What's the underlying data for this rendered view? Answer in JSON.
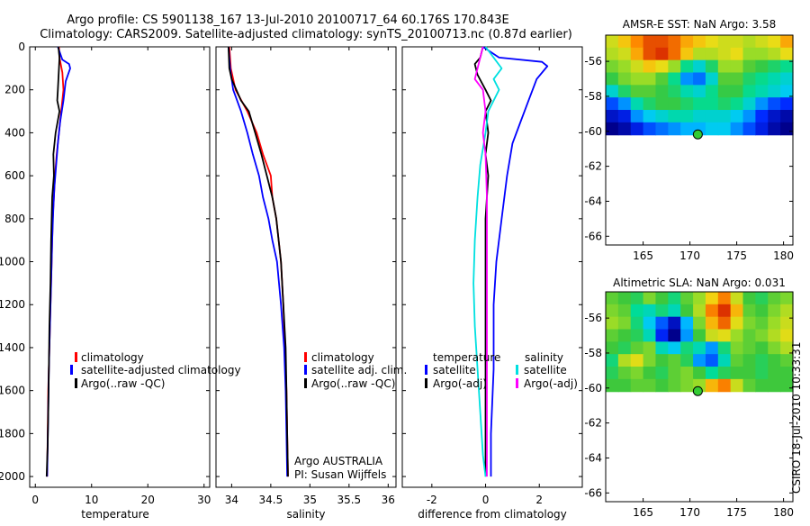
{
  "header": {
    "line1": "Argo profile: CS 5901138_167 13-Jul-2010 20100717_64 60.176S 170.843E",
    "line2": "Climatology: CARS2009. Satellite-adjusted climatology: synTS_20100713.nc (0.87d earlier)"
  },
  "side_stamp": "CSIRO 18-Jul-2010 10:33:31",
  "annotations": {
    "float_owner": "Argo AUSTRALIA",
    "pi": "PI: Susan Wijffels"
  },
  "colors": {
    "climatology": "#ff0000",
    "satellite": "#0000ff",
    "argo": "#000000",
    "sat_salinity": "#00e0e0",
    "argo_salinity_diff": "#ff00ff",
    "marker": "#33cc33"
  },
  "chart_data": [
    {
      "type": "line",
      "id": "temperature",
      "xlabel": "temperature",
      "xlim": [
        -1,
        31
      ],
      "ylim": [
        2050,
        0
      ],
      "y_reversed": true,
      "xticks": [
        0,
        10,
        20,
        30
      ],
      "yticks": [
        0,
        200,
        400,
        600,
        800,
        1000,
        1200,
        1400,
        1600,
        1800,
        2000
      ],
      "legend": [
        "climatology",
        "satellite-adjusted climatology",
        "Argo(..raw -QC)"
      ],
      "series": [
        {
          "name": "climatology",
          "color": "#ff0000",
          "points": [
            [
              4.2,
              0
            ],
            [
              4.3,
              50
            ],
            [
              4.8,
              120
            ],
            [
              5.0,
              200
            ],
            [
              4.6,
              300
            ],
            [
              4.2,
              400
            ],
            [
              3.8,
              500
            ],
            [
              3.5,
              600
            ],
            [
              3.3,
              700
            ],
            [
              3.1,
              800
            ],
            [
              2.9,
              1000
            ],
            [
              2.7,
              1200
            ],
            [
              2.5,
              1400
            ],
            [
              2.3,
              1600
            ],
            [
              2.2,
              1800
            ],
            [
              2.1,
              2000
            ]
          ]
        },
        {
          "name": "satellite-adjusted climatology",
          "color": "#0000ff",
          "points": [
            [
              4.0,
              0
            ],
            [
              4.8,
              60
            ],
            [
              6.0,
              80
            ],
            [
              6.2,
              100
            ],
            [
              5.4,
              160
            ],
            [
              5.0,
              250
            ],
            [
              4.4,
              350
            ],
            [
              4.0,
              450
            ],
            [
              3.7,
              550
            ],
            [
              3.4,
              650
            ],
            [
              3.2,
              750
            ],
            [
              3.0,
              900
            ],
            [
              2.8,
              1100
            ],
            [
              2.6,
              1300
            ],
            [
              2.4,
              1500
            ],
            [
              2.3,
              1700
            ],
            [
              2.2,
              1850
            ],
            [
              2.1,
              2000
            ]
          ]
        },
        {
          "name": "Argo(..raw -QC)",
          "color": "#000000",
          "points": [
            [
              4.1,
              0
            ],
            [
              4.3,
              50
            ],
            [
              4.2,
              100
            ],
            [
              4.0,
              200
            ],
            [
              3.9,
              250
            ],
            [
              4.3,
              300
            ],
            [
              3.6,
              400
            ],
            [
              3.2,
              500
            ],
            [
              3.3,
              600
            ],
            [
              3.0,
              700
            ],
            [
              2.8,
              900
            ],
            [
              2.7,
              1100
            ],
            [
              2.5,
              1300
            ],
            [
              2.4,
              1500
            ],
            [
              2.3,
              1700
            ],
            [
              2.2,
              1850
            ],
            [
              2.0,
              2000
            ]
          ]
        }
      ]
    },
    {
      "type": "line",
      "id": "salinity",
      "xlabel": "salinity",
      "xlim": [
        33.8,
        36.1
      ],
      "ylim": [
        2050,
        0
      ],
      "y_reversed": true,
      "xticks": [
        34,
        34.5,
        35,
        35.5,
        36
      ],
      "legend": [
        "climatology",
        "satellite adj. clim.",
        "Argo(..raw -QC)"
      ],
      "series": [
        {
          "name": "climatology",
          "color": "#ff0000",
          "points": [
            [
              33.97,
              0
            ],
            [
              33.99,
              100
            ],
            [
              34.05,
              200
            ],
            [
              34.2,
              300
            ],
            [
              34.32,
              400
            ],
            [
              34.4,
              500
            ],
            [
              34.5,
              600
            ],
            [
              34.52,
              700
            ],
            [
              34.57,
              800
            ],
            [
              34.6,
              900
            ],
            [
              34.63,
              1000
            ],
            [
              34.66,
              1200
            ],
            [
              34.68,
              1400
            ],
            [
              34.7,
              1600
            ],
            [
              34.71,
              1800
            ],
            [
              34.72,
              2000
            ]
          ]
        },
        {
          "name": "satellite adj. clim.",
          "color": "#0000ff",
          "points": [
            [
              33.96,
              0
            ],
            [
              33.98,
              100
            ],
            [
              34.02,
              200
            ],
            [
              34.12,
              300
            ],
            [
              34.2,
              400
            ],
            [
              34.27,
              500
            ],
            [
              34.35,
              600
            ],
            [
              34.4,
              700
            ],
            [
              34.47,
              800
            ],
            [
              34.52,
              900
            ],
            [
              34.58,
              1000
            ],
            [
              34.63,
              1200
            ],
            [
              34.67,
              1400
            ],
            [
              34.69,
              1600
            ],
            [
              34.7,
              1800
            ],
            [
              34.71,
              2000
            ]
          ]
        },
        {
          "name": "Argo(..raw -QC)",
          "color": "#000000",
          "points": [
            [
              33.96,
              0
            ],
            [
              33.97,
              100
            ],
            [
              34.0,
              150
            ],
            [
              34.12,
              250
            ],
            [
              34.22,
              300
            ],
            [
              34.3,
              400
            ],
            [
              34.38,
              500
            ],
            [
              34.45,
              600
            ],
            [
              34.52,
              700
            ],
            [
              34.57,
              800
            ],
            [
              34.6,
              900
            ],
            [
              34.63,
              1000
            ],
            [
              34.66,
              1200
            ],
            [
              34.69,
              1400
            ],
            [
              34.7,
              1600
            ],
            [
              34.71,
              1800
            ],
            [
              34.72,
              2000
            ]
          ]
        }
      ]
    },
    {
      "type": "line",
      "id": "difference",
      "xlabel": "difference from climatology",
      "xlim": [
        -3.1,
        3.6
      ],
      "ylim": [
        2050,
        0
      ],
      "y_reversed": true,
      "xticks": [
        -2,
        0,
        2
      ],
      "legend_headers": [
        "temperature",
        "salinity"
      ],
      "legend": [
        "satellite",
        "Argo(-adj)",
        "satellite",
        "Argo(-adj)"
      ],
      "series": [
        {
          "name": "temperature satellite",
          "color": "#0000ff",
          "points": [
            [
              -0.1,
              0
            ],
            [
              0.5,
              50
            ],
            [
              2.1,
              70
            ],
            [
              2.3,
              90
            ],
            [
              1.9,
              150
            ],
            [
              1.6,
              250
            ],
            [
              1.3,
              350
            ],
            [
              1.0,
              450
            ],
            [
              0.8,
              600
            ],
            [
              0.6,
              800
            ],
            [
              0.4,
              1000
            ],
            [
              0.3,
              1200
            ],
            [
              0.3,
              1500
            ],
            [
              0.2,
              1800
            ],
            [
              0.2,
              2000
            ]
          ]
        },
        {
          "name": "temperature Argo(-adj)",
          "color": "#000000",
          "points": [
            [
              -0.1,
              0
            ],
            [
              -0.2,
              50
            ],
            [
              -0.4,
              80
            ],
            [
              -0.3,
              130
            ],
            [
              0.0,
              200
            ],
            [
              0.2,
              250
            ],
            [
              0.0,
              300
            ],
            [
              0.1,
              400
            ],
            [
              0.0,
              500
            ],
            [
              0.1,
              600
            ],
            [
              0.0,
              800
            ],
            [
              0.0,
              1000
            ],
            [
              0.0,
              1500
            ],
            [
              0.0,
              2000
            ]
          ]
        },
        {
          "name": "salinity satellite",
          "color": "#00e0e0",
          "points": [
            [
              0.0,
              0
            ],
            [
              0.3,
              50
            ],
            [
              0.6,
              100
            ],
            [
              0.3,
              150
            ],
            [
              0.5,
              200
            ],
            [
              0.1,
              300
            ],
            [
              0.0,
              400
            ],
            [
              -0.2,
              550
            ],
            [
              -0.3,
              700
            ],
            [
              -0.4,
              900
            ],
            [
              -0.45,
              1100
            ],
            [
              -0.4,
              1300
            ],
            [
              -0.3,
              1500
            ],
            [
              -0.2,
              1700
            ],
            [
              -0.1,
              1900
            ],
            [
              0.0,
              2000
            ]
          ]
        },
        {
          "name": "salinity Argo(-adj)",
          "color": "#ff00ff",
          "points": [
            [
              -0.1,
              0
            ],
            [
              -0.3,
              100
            ],
            [
              -0.4,
              150
            ],
            [
              -0.1,
              200
            ],
            [
              0.0,
              300
            ],
            [
              -0.1,
              400
            ],
            [
              0.0,
              500
            ],
            [
              0.05,
              700
            ],
            [
              0.05,
              1000
            ],
            [
              0.05,
              1500
            ],
            [
              0.05,
              2000
            ]
          ]
        }
      ]
    },
    {
      "type": "heatmap",
      "id": "amsre-sst",
      "title": "AMSR-E SST: NaN Argo: 3.58",
      "xlim": [
        161,
        181
      ],
      "ylim": [
        -66.5,
        -54.5
      ],
      "xticks": [
        165,
        170,
        175,
        180
      ],
      "yticks": [
        -56,
        -58,
        -60,
        -62,
        -64,
        -66
      ],
      "data_lat_range": [
        -60.2,
        -54.5
      ],
      "marker": {
        "lon": 170.843,
        "lat": -60.176
      },
      "grid_values": [
        [
          24,
          26,
          28,
          30,
          30,
          29,
          27,
          26,
          25,
          24,
          24,
          23,
          24,
          25,
          27
        ],
        [
          23,
          24,
          27,
          30,
          31,
          29,
          26,
          23,
          23,
          24,
          25,
          22,
          22,
          23,
          25
        ],
        [
          21,
          22,
          24,
          26,
          25,
          22,
          17,
          15,
          18,
          22,
          22,
          20,
          19,
          18,
          17
        ],
        [
          19,
          21,
          22,
          22,
          20,
          17,
          12,
          11,
          15,
          20,
          20,
          18,
          17,
          16,
          15
        ],
        [
          15,
          18,
          20,
          20,
          19,
          18,
          16,
          15,
          17,
          19,
          19,
          17,
          16,
          15,
          14
        ],
        [
          10,
          12,
          16,
          18,
          19,
          19,
          18,
          17,
          17,
          18,
          17,
          15,
          12,
          10,
          9
        ],
        [
          7,
          8,
          12,
          14,
          15,
          16,
          16,
          15,
          15,
          15,
          14,
          12,
          9,
          7,
          6
        ],
        [
          5,
          6,
          8,
          10,
          11,
          12,
          13,
          13,
          14,
          14,
          12,
          10,
          8,
          6,
          5
        ]
      ]
    },
    {
      "type": "heatmap",
      "id": "altimetric-sla",
      "title": "Altimetric SLA: NaN Argo: 0.031",
      "xlim": [
        161,
        181
      ],
      "ylim": [
        -66.5,
        -54.5
      ],
      "xticks": [
        165,
        170,
        175,
        180
      ],
      "yticks": [
        -56,
        -58,
        -60,
        -62,
        -64,
        -66
      ],
      "data_lat_range": [
        -60.2,
        -54.5
      ],
      "marker": {
        "lon": 170.843,
        "lat": -60.176
      },
      "grid_values": [
        [
          17,
          16,
          15,
          18,
          16,
          14,
          17,
          19,
          23,
          26,
          21,
          16,
          15,
          17,
          18
        ],
        [
          18,
          17,
          13,
          12,
          14,
          12,
          16,
          20,
          26,
          29,
          24,
          17,
          16,
          18,
          20
        ],
        [
          19,
          18,
          14,
          10,
          6,
          2,
          9,
          18,
          24,
          27,
          22,
          18,
          17,
          19,
          21
        ],
        [
          17,
          16,
          15,
          12,
          4,
          0,
          8,
          16,
          21,
          22,
          19,
          17,
          18,
          20,
          22
        ],
        [
          16,
          15,
          17,
          18,
          12,
          10,
          14,
          12,
          8,
          14,
          18,
          17,
          16,
          18,
          20
        ],
        [
          14,
          20,
          22,
          18,
          16,
          17,
          15,
          8,
          6,
          12,
          17,
          16,
          15,
          16,
          17
        ],
        [
          15,
          17,
          18,
          16,
          15,
          17,
          18,
          16,
          13,
          15,
          16,
          16,
          15,
          16,
          16
        ],
        [
          16,
          16,
          17,
          17,
          16,
          17,
          18,
          19,
          24,
          26,
          21,
          17,
          16,
          16,
          16
        ]
      ]
    }
  ]
}
